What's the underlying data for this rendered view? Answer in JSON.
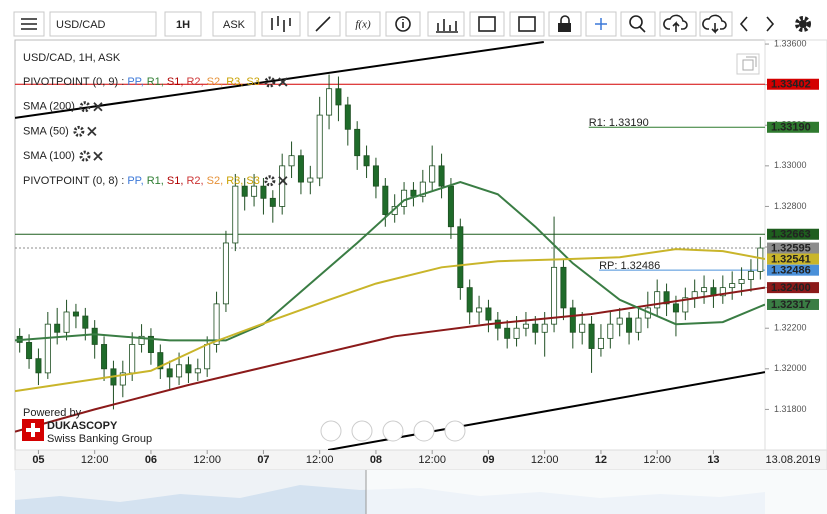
{
  "toolbar": {
    "symbol": "USD/CAD",
    "period": "1H",
    "side": "ASK",
    "fx": "f(x)"
  },
  "chart_data": {
    "type": "candlestick",
    "title": "USD/CAD, 1H, ASK",
    "open": [
      1.3216,
      1.3213,
      1.3205,
      1.3198,
      1.3222,
      1.3218,
      1.3228,
      1.3226,
      1.322,
      1.3212,
      1.32,
      1.3192,
      1.3198,
      1.3212,
      1.3216,
      1.3208,
      1.32,
      1.3196,
      1.3202,
      1.3198,
      1.32,
      1.3212,
      1.3232,
      1.3262,
      1.329,
      1.3285,
      1.329,
      1.3284,
      1.328,
      1.33,
      1.3305,
      1.3292,
      1.3294,
      1.3325,
      1.3338,
      1.333,
      1.3318,
      1.3305,
      1.33,
      1.329,
      1.3276,
      1.328,
      1.3288,
      1.3285,
      1.3292,
      1.33,
      1.329,
      1.327,
      1.324,
      1.3228,
      1.323,
      1.3224,
      1.322,
      1.3215,
      1.322,
      1.3222,
      1.3218,
      1.3222,
      1.325,
      1.323,
      1.3218,
      1.3222,
      1.321,
      1.3215,
      1.3222,
      1.3225,
      1.3218,
      1.3225,
      1.323,
      1.3238,
      1.3232,
      1.3228,
      1.3235,
      1.3238,
      1.324,
      1.3236,
      1.324,
      1.3242,
      1.3244,
      1.3248
    ],
    "high": [
      1.322,
      1.3217,
      1.321,
      1.3228,
      1.323,
      1.3234,
      1.3232,
      1.323,
      1.3224,
      1.3216,
      1.3204,
      1.3204,
      1.3218,
      1.3222,
      1.322,
      1.3212,
      1.3204,
      1.3208,
      1.3206,
      1.3205,
      1.3216,
      1.3238,
      1.3268,
      1.3296,
      1.3294,
      1.3296,
      1.3294,
      1.3288,
      1.3306,
      1.3312,
      1.3308,
      1.33,
      1.3334,
      1.3345,
      1.3344,
      1.3334,
      1.3322,
      1.331,
      1.3304,
      1.3294,
      1.3286,
      1.3292,
      1.3292,
      1.3298,
      1.331,
      1.3306,
      1.3294,
      1.3274,
      1.3244,
      1.3236,
      1.3234,
      1.3228,
      1.3224,
      1.3226,
      1.3228,
      1.3226,
      1.3228,
      1.3275,
      1.3254,
      1.3234,
      1.3228,
      1.3226,
      1.3222,
      1.3228,
      1.323,
      1.3228,
      1.323,
      1.3238,
      1.3244,
      1.3242,
      1.3236,
      1.324,
      1.3244,
      1.3246,
      1.3244,
      1.3246,
      1.3248,
      1.325,
      1.3254,
      1.3265
    ],
    "low": [
      1.3208,
      1.32,
      1.3192,
      1.3195,
      1.3212,
      1.3214,
      1.322,
      1.3214,
      1.3205,
      1.3194,
      1.318,
      1.3186,
      1.3194,
      1.3208,
      1.3202,
      1.3195,
      1.319,
      1.3192,
      1.3193,
      1.3194,
      1.3196,
      1.3208,
      1.3228,
      1.3258,
      1.3278,
      1.328,
      1.3276,
      1.3272,
      1.3276,
      1.3294,
      1.3286,
      1.3286,
      1.329,
      1.3318,
      1.3322,
      1.331,
      1.3298,
      1.3294,
      1.3284,
      1.327,
      1.3272,
      1.3276,
      1.328,
      1.3282,
      1.3288,
      1.3284,
      1.3264,
      1.3234,
      1.3222,
      1.3222,
      1.3218,
      1.3214,
      1.321,
      1.3211,
      1.3216,
      1.3212,
      1.3206,
      1.3218,
      1.3224,
      1.321,
      1.3212,
      1.3198,
      1.3206,
      1.321,
      1.3216,
      1.3212,
      1.3214,
      1.322,
      1.3226,
      1.3226,
      1.3216,
      1.3224,
      1.323,
      1.3232,
      1.323,
      1.3232,
      1.3234,
      1.3236,
      1.3238,
      1.3244
    ],
    "close": [
      1.3213,
      1.3205,
      1.3198,
      1.3222,
      1.3218,
      1.3228,
      1.3226,
      1.322,
      1.3212,
      1.32,
      1.3192,
      1.3198,
      1.3212,
      1.3216,
      1.3208,
      1.32,
      1.3196,
      1.3202,
      1.3198,
      1.32,
      1.3212,
      1.3232,
      1.3262,
      1.329,
      1.3285,
      1.329,
      1.3284,
      1.328,
      1.33,
      1.3305,
      1.3292,
      1.3294,
      1.3325,
      1.3338,
      1.333,
      1.3318,
      1.3305,
      1.33,
      1.329,
      1.3276,
      1.328,
      1.3288,
      1.3285,
      1.3292,
      1.33,
      1.329,
      1.327,
      1.324,
      1.3228,
      1.323,
      1.3224,
      1.322,
      1.3215,
      1.322,
      1.3222,
      1.3218,
      1.3222,
      1.325,
      1.323,
      1.3218,
      1.3222,
      1.321,
      1.3215,
      1.3222,
      1.3225,
      1.3218,
      1.3225,
      1.323,
      1.3238,
      1.3232,
      1.3228,
      1.3235,
      1.3238,
      1.324,
      1.3236,
      1.324,
      1.3242,
      1.3244,
      1.3248,
      1.32595
    ],
    "up_color": "#ffffff",
    "down_color": "#1f6b2a",
    "wick_color": "#1f4f22",
    "xlim": [
      -0.5,
      79.5
    ],
    "xticks": [
      {
        "value": 2,
        "label": "05",
        "major": true
      },
      {
        "value": 8,
        "label": "12:00"
      },
      {
        "value": 14,
        "label": "06",
        "major": true
      },
      {
        "value": 20,
        "label": "12:00"
      },
      {
        "value": 26,
        "label": "07",
        "major": true
      },
      {
        "value": 32,
        "label": "12:00"
      },
      {
        "value": 38,
        "label": "08",
        "major": true
      },
      {
        "value": 44,
        "label": "12:00"
      },
      {
        "value": 50,
        "label": "09",
        "major": true
      },
      {
        "value": 56,
        "label": "12:00"
      },
      {
        "value": 62,
        "label": "12",
        "major": true
      },
      {
        "value": 68,
        "label": "12:00"
      },
      {
        "value": 74,
        "label": "13",
        "major": true
      }
    ],
    "date_label": "13.08.2019",
    "ylim": [
      1.316,
      1.3362
    ],
    "yticks": [
      {
        "value": 1.318,
        "label": "1.31800"
      },
      {
        "value": 1.32,
        "label": "1.32000"
      },
      {
        "value": 1.322,
        "label": "1.32200"
      },
      {
        "value": 1.324,
        "label": "1.32400"
      },
      {
        "value": 1.326,
        "label": "1.32600"
      },
      {
        "value": 1.328,
        "label": "1.32800"
      },
      {
        "value": 1.33,
        "label": "1.33000"
      },
      {
        "value": 1.332,
        "label": "1.33200"
      },
      {
        "value": 1.334,
        "label": "1.33400"
      },
      {
        "value": 1.336,
        "label": "1.33600"
      }
    ],
    "series": [
      {
        "name": "SMA (200)",
        "color": "#8b1a1a",
        "x": [
          -0.5,
          8,
          18,
          29,
          40,
          50,
          61,
          71,
          79.5
        ],
        "values": [
          1.3169,
          1.318,
          1.3192,
          1.3204,
          1.3216,
          1.3222,
          1.3227,
          1.3234,
          1.324
        ]
      },
      {
        "name": "SMA (50)",
        "color": "#3a7d44",
        "x": [
          -0.5,
          8,
          16,
          22,
          26,
          30,
          36,
          41,
          47,
          51,
          55,
          59,
          64,
          70,
          75,
          79.5
        ],
        "values": [
          1.3214,
          1.3217,
          1.3214,
          1.3214,
          1.3222,
          1.3238,
          1.3262,
          1.3283,
          1.3292,
          1.3286,
          1.327,
          1.3252,
          1.3234,
          1.3222,
          1.3223,
          1.32317
        ]
      },
      {
        "name": "SMA (100)",
        "color": "#c9b52a",
        "x": [
          -0.5,
          14,
          20,
          27,
          33,
          38,
          45,
          51,
          58,
          64,
          70,
          75,
          79.5
        ],
        "values": [
          1.3189,
          1.3199,
          1.3212,
          1.3224,
          1.3234,
          1.3242,
          1.325,
          1.3253,
          1.3254,
          1.3255,
          1.3259,
          1.3258,
          1.32541
        ]
      }
    ],
    "trendlines": [
      {
        "color": "#000000",
        "x": [
          -0.5,
          55.9
        ],
        "values": [
          1.33236,
          1.3361
        ]
      },
      {
        "color": "#000000",
        "x": [
          32.9,
          79.5
        ],
        "values": [
          1.316,
          1.31984
        ]
      }
    ],
    "pivots": [
      {
        "name": "PIVOTPOINT (0, 9)",
        "parts": [
          {
            "text": " : ",
            "color": "#333333"
          },
          {
            "text": "PP,",
            "color": "#3c78d8"
          },
          {
            "text": " R1,",
            "color": "#2e7d32"
          },
          {
            "text": " S1,",
            "color": "#b00000"
          },
          {
            "text": " R2,",
            "color": "#cc3333"
          },
          {
            "text": " S2,",
            "color": "#e69138"
          },
          {
            "text": " R3,",
            "color": "#c9a100"
          },
          {
            "text": " S3",
            "color": "#c9a100"
          }
        ]
      },
      {
        "name": "PIVOTPOINT (0, 8)",
        "parts": [
          {
            "text": " : ",
            "color": "#333333"
          },
          {
            "text": "PP,",
            "color": "#3c78d8"
          },
          {
            "text": " R1,",
            "color": "#2e7d32"
          },
          {
            "text": " S1,",
            "color": "#b00000"
          },
          {
            "text": " R2,",
            "color": "#cc3333"
          },
          {
            "text": " S2,",
            "color": "#e69138"
          },
          {
            "text": " R3,",
            "color": "#c9a100"
          },
          {
            "text": " S3",
            "color": "#c9a100"
          }
        ]
      }
    ],
    "levels": [
      {
        "value": 1.33402,
        "label": "1.33402",
        "color": "#d40000",
        "line": "solid",
        "x_start": -0.5
      },
      {
        "value": 1.3319,
        "label": "1.33190",
        "color": "#2f7a2f",
        "line": "solid",
        "x_start": 60.7,
        "note": "R1: 1.33190"
      },
      {
        "value": 1.32663,
        "label": "1.32663",
        "color": "#1e5e1e",
        "line": "solid",
        "x_start": -0.5
      },
      {
        "value": 1.32595,
        "label": "1.32595",
        "color": "#8c8c8c",
        "line": "dotted",
        "x_start": -0.5
      },
      {
        "value": 1.32541,
        "label": "1.32541",
        "color": "#c9b52a",
        "line": "none"
      },
      {
        "value": 1.32486,
        "label": "1.32486",
        "color": "#4a90d9",
        "line": "solid",
        "x_start": 61.8,
        "note": "RP: 1.32486"
      },
      {
        "value": 1.324,
        "label": "1.32400",
        "color": "#8b1a1a",
        "line": "none"
      },
      {
        "value": 1.32317,
        "label": "1.32317",
        "color": "#3a7d44",
        "line": "none"
      }
    ]
  },
  "branding": {
    "powered": "Powered by",
    "name": "DUKASCOPY",
    "tagline": "Swiss Banking Group"
  }
}
